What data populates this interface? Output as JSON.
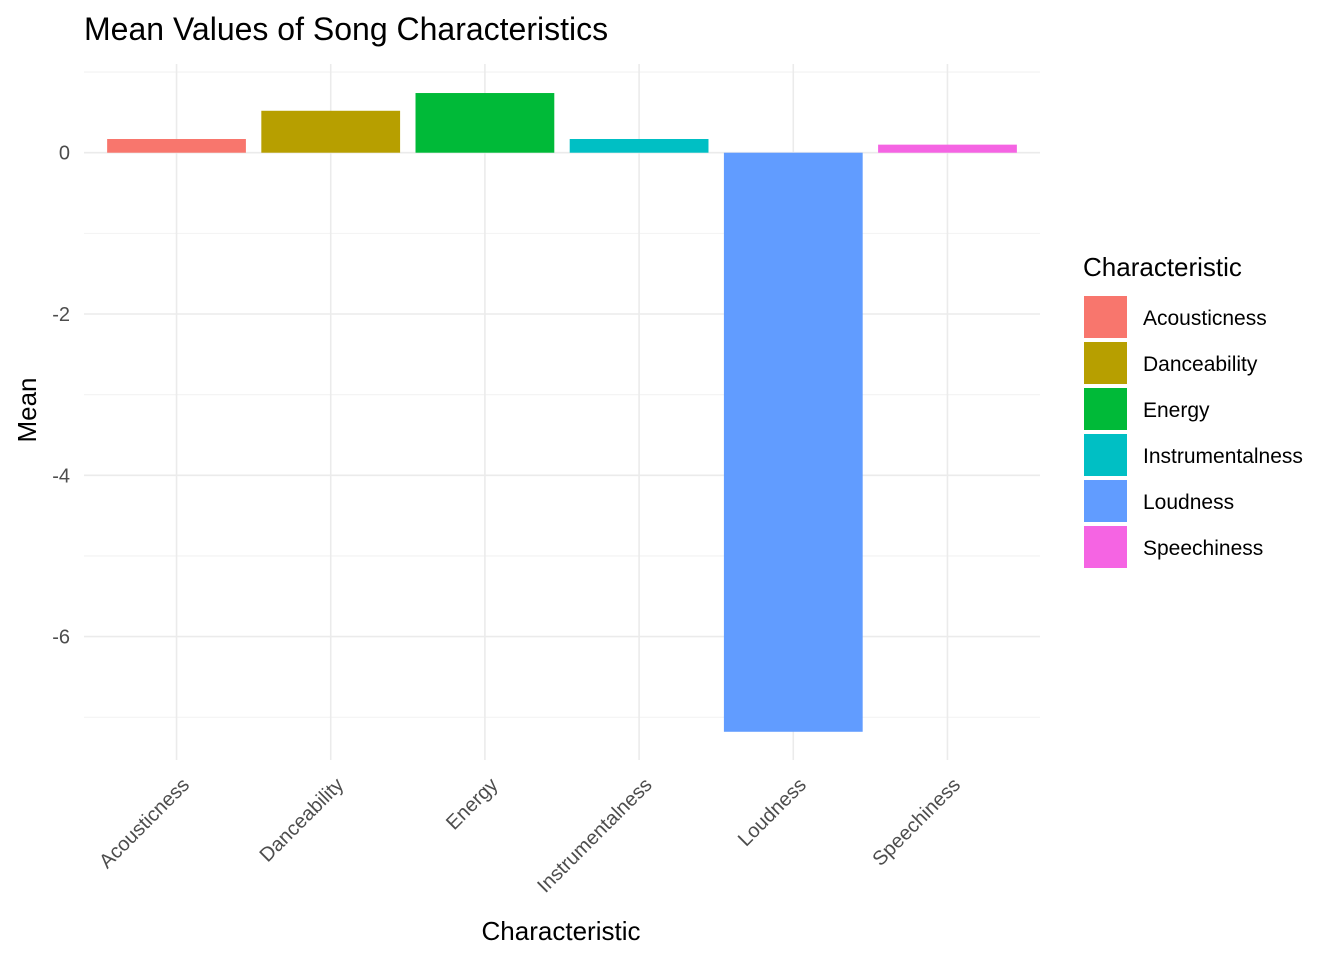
{
  "chart_data": {
    "type": "bar",
    "title": "Mean Values of Song Characteristics",
    "xlabel": "Characteristic",
    "ylabel": "Mean",
    "categories": [
      "Acousticness",
      "Danceability",
      "Energy",
      "Instrumentalness",
      "Loudness",
      "Speechiness"
    ],
    "values": [
      0.17,
      0.52,
      0.74,
      0.17,
      -7.18,
      0.1
    ],
    "colors": [
      "#F8766D",
      "#B79F00",
      "#00BA38",
      "#00BFC4",
      "#619CFF",
      "#F564E3"
    ],
    "yticks": [
      0,
      -2,
      -4,
      -6
    ],
    "ytick_labels": [
      "0",
      "-2",
      "-4",
      "-6"
    ],
    "ylim": [
      -7.53,
      1.1
    ],
    "grid": true,
    "legend": {
      "title": "Characteristic",
      "position": "right",
      "entries": [
        "Acousticness",
        "Danceability",
        "Energy",
        "Instrumentalness",
        "Loudness",
        "Speechiness"
      ]
    }
  }
}
